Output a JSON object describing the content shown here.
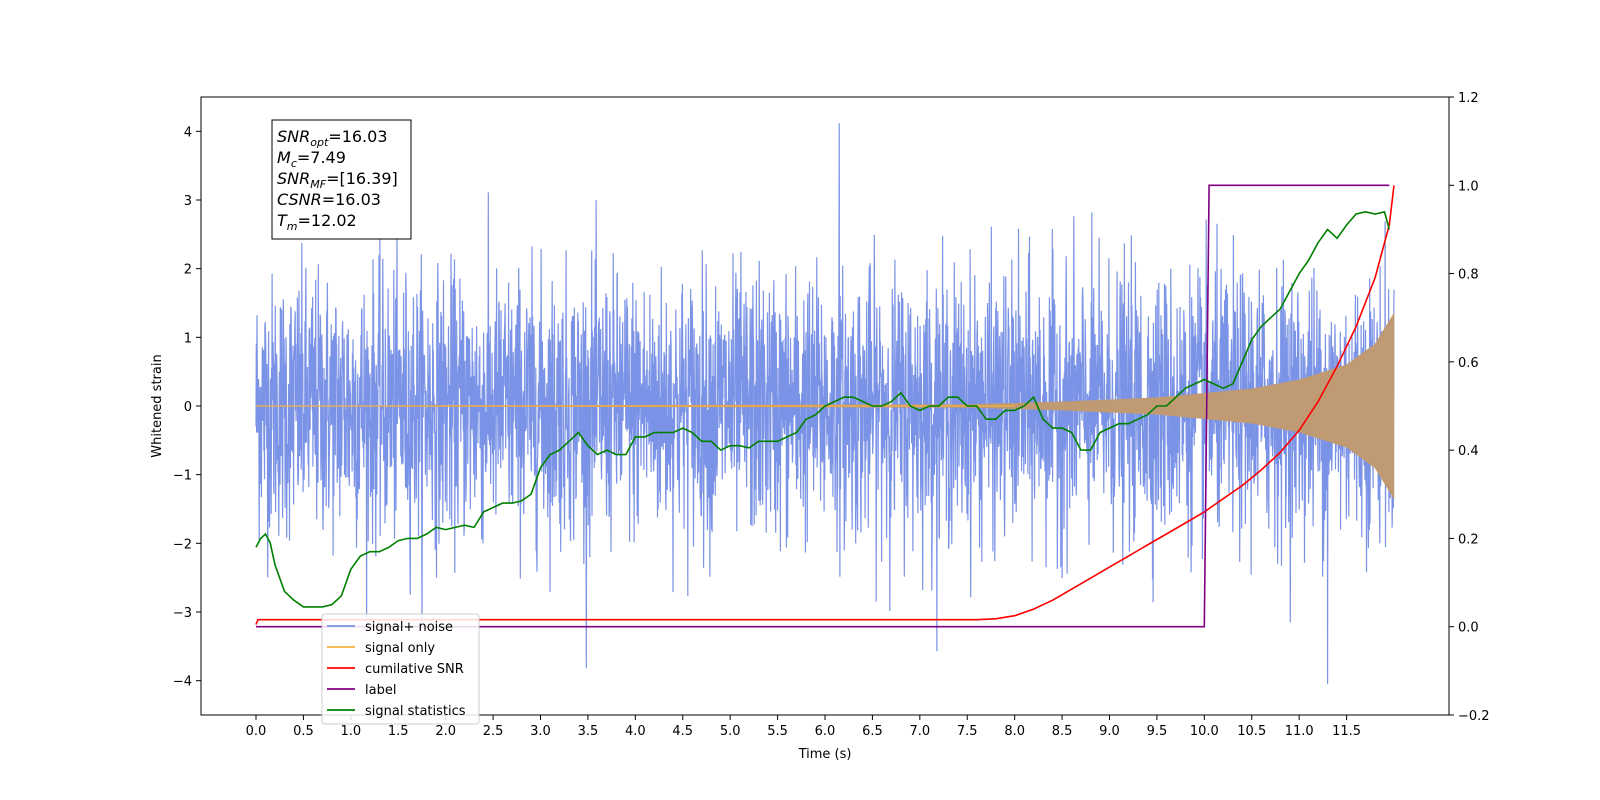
{
  "chart_data": {
    "type": "line",
    "xlabel": "Time (s)",
    "ylabel": "Whitened strain",
    "xlim": [
      -0.58,
      12.58
    ],
    "ylim": [
      -4.5,
      4.5
    ],
    "y2lim": [
      -0.2,
      1.2
    ],
    "x_ticks": [
      0.0,
      0.5,
      1.0,
      1.5,
      2.0,
      2.5,
      3.0,
      3.5,
      4.0,
      4.5,
      5.0,
      5.5,
      6.0,
      6.5,
      7.0,
      7.5,
      8.0,
      8.5,
      9.0,
      9.5,
      10.0,
      10.5,
      11.0,
      11.5
    ],
    "x_tick_labels": [
      "0.0",
      "0.5",
      "1.0",
      "1.5",
      "2.0",
      "2.5",
      "3.0",
      "3.5",
      "4.0",
      "4.5",
      "5.0",
      "5.5",
      "6.0",
      "6.5",
      "7.0",
      "7.5",
      "8.0",
      "8.5",
      "9.0",
      "9.5",
      "10.0",
      "10.5",
      "11.0",
      "11.5"
    ],
    "y_ticks": [
      -4,
      -3,
      -2,
      -1,
      0,
      1,
      2,
      3,
      4
    ],
    "y_tick_labels": [
      "−4",
      "−3",
      "−2",
      "−1",
      "0",
      "1",
      "2",
      "3",
      "4"
    ],
    "y2_ticks": [
      -0.2,
      0.0,
      0.2,
      0.4,
      0.6,
      0.8,
      1.0,
      1.2
    ],
    "y2_tick_labels": [
      "−0.2",
      "0.0",
      "0.2",
      "0.4",
      "0.6",
      "0.8",
      "1.0",
      "1.2"
    ],
    "grid": false,
    "legend_placement": "lower-left",
    "colors": {
      "signal_noise": "#7b93e6",
      "signal_only": "#f5b041",
      "signal_only_fill": "#bf9a72",
      "cumulative_snr": "#ff0000",
      "label": "#800080",
      "signal_statistics": "#008000"
    },
    "annotation": {
      "lines": [
        {
          "base": "SNR",
          "sub": "opt",
          "value": "=16.03"
        },
        {
          "base": "M",
          "sub": "c",
          "value": "=7.49"
        },
        {
          "base": "SNR",
          "sub": "MF",
          "value": "=[16.39]"
        },
        {
          "base": "CSNR",
          "sub": "",
          "value": "=16.03"
        },
        {
          "base": "T",
          "sub": "m",
          "value": "=12.02"
        }
      ]
    },
    "series": [
      {
        "name": "signal+ noise",
        "axis": "left",
        "kind": "noise",
        "x_start": 0.0,
        "x_end": 12.0,
        "sigma": 1.0,
        "peak_max": 4.12,
        "peak_min": -4.05
      },
      {
        "name": "signal only",
        "axis": "left",
        "kind": "chirp",
        "x_start": 0.0,
        "x_end": 12.0,
        "envelope": [
          [
            0.0,
            0.0
          ],
          [
            7.5,
            0.02
          ],
          [
            8.5,
            0.06
          ],
          [
            9.5,
            0.12
          ],
          [
            10.5,
            0.25
          ],
          [
            11.0,
            0.38
          ],
          [
            11.5,
            0.6
          ],
          [
            11.8,
            0.9
          ],
          [
            12.0,
            1.35
          ]
        ]
      },
      {
        "name": "cumilative SNR",
        "axis": "right",
        "x": [
          0.0,
          0.02,
          7.6,
          7.8,
          8.0,
          8.2,
          8.4,
          8.6,
          8.8,
          9.0,
          9.2,
          9.4,
          9.6,
          9.8,
          10.0,
          10.2,
          10.4,
          10.6,
          10.8,
          11.0,
          11.2,
          11.4,
          11.6,
          11.8,
          11.95,
          12.0
        ],
        "y": [
          0.005,
          0.016,
          0.016,
          0.018,
          0.025,
          0.04,
          0.06,
          0.085,
          0.11,
          0.135,
          0.16,
          0.185,
          0.21,
          0.235,
          0.26,
          0.29,
          0.32,
          0.355,
          0.395,
          0.445,
          0.51,
          0.59,
          0.68,
          0.79,
          0.91,
          1.0
        ]
      },
      {
        "name": "label",
        "axis": "right",
        "x": [
          0.0,
          10.0,
          10.05,
          11.95
        ],
        "y": [
          0.0,
          0.0,
          1.0,
          1.0
        ]
      },
      {
        "name": "signal statistics",
        "axis": "right",
        "x": [
          0.0,
          0.05,
          0.1,
          0.15,
          0.2,
          0.3,
          0.4,
          0.5,
          0.6,
          0.7,
          0.8,
          0.9,
          1.0,
          1.1,
          1.2,
          1.3,
          1.4,
          1.5,
          1.6,
          1.7,
          1.8,
          1.9,
          2.0,
          2.1,
          2.2,
          2.3,
          2.4,
          2.5,
          2.6,
          2.7,
          2.8,
          2.9,
          3.0,
          3.1,
          3.2,
          3.3,
          3.4,
          3.5,
          3.6,
          3.7,
          3.8,
          3.9,
          4.0,
          4.1,
          4.2,
          4.3,
          4.4,
          4.5,
          4.6,
          4.7,
          4.8,
          4.9,
          5.0,
          5.1,
          5.2,
          5.3,
          5.4,
          5.5,
          5.6,
          5.7,
          5.8,
          5.9,
          6.0,
          6.1,
          6.2,
          6.3,
          6.4,
          6.5,
          6.6,
          6.7,
          6.8,
          6.9,
          7.0,
          7.1,
          7.2,
          7.3,
          7.4,
          7.5,
          7.6,
          7.7,
          7.8,
          7.9,
          8.0,
          8.1,
          8.2,
          8.3,
          8.4,
          8.5,
          8.6,
          8.7,
          8.8,
          8.9,
          9.0,
          9.1,
          9.2,
          9.3,
          9.4,
          9.5,
          9.6,
          9.7,
          9.8,
          9.9,
          10.0,
          10.1,
          10.2,
          10.3,
          10.4,
          10.5,
          10.6,
          10.7,
          10.8,
          10.9,
          11.0,
          11.1,
          11.2,
          11.3,
          11.4,
          11.5,
          11.6,
          11.7,
          11.8,
          11.9,
          11.95
        ],
        "y": [
          0.18,
          0.2,
          0.21,
          0.19,
          0.14,
          0.08,
          0.06,
          0.045,
          0.045,
          0.045,
          0.05,
          0.07,
          0.13,
          0.16,
          0.17,
          0.17,
          0.18,
          0.195,
          0.2,
          0.2,
          0.21,
          0.225,
          0.22,
          0.225,
          0.23,
          0.225,
          0.26,
          0.27,
          0.28,
          0.28,
          0.285,
          0.3,
          0.36,
          0.39,
          0.4,
          0.42,
          0.44,
          0.41,
          0.39,
          0.4,
          0.39,
          0.39,
          0.43,
          0.43,
          0.44,
          0.44,
          0.44,
          0.45,
          0.44,
          0.42,
          0.42,
          0.4,
          0.41,
          0.41,
          0.405,
          0.42,
          0.42,
          0.42,
          0.43,
          0.44,
          0.47,
          0.48,
          0.5,
          0.51,
          0.52,
          0.52,
          0.51,
          0.5,
          0.5,
          0.51,
          0.53,
          0.5,
          0.49,
          0.5,
          0.5,
          0.52,
          0.52,
          0.5,
          0.5,
          0.47,
          0.47,
          0.49,
          0.49,
          0.5,
          0.52,
          0.47,
          0.45,
          0.45,
          0.44,
          0.4,
          0.4,
          0.44,
          0.45,
          0.46,
          0.46,
          0.47,
          0.48,
          0.5,
          0.5,
          0.52,
          0.54,
          0.55,
          0.56,
          0.55,
          0.54,
          0.55,
          0.6,
          0.65,
          0.68,
          0.7,
          0.72,
          0.76,
          0.8,
          0.83,
          0.87,
          0.9,
          0.88,
          0.91,
          0.935,
          0.94,
          0.935,
          0.94,
          0.9
        ]
      }
    ]
  }
}
